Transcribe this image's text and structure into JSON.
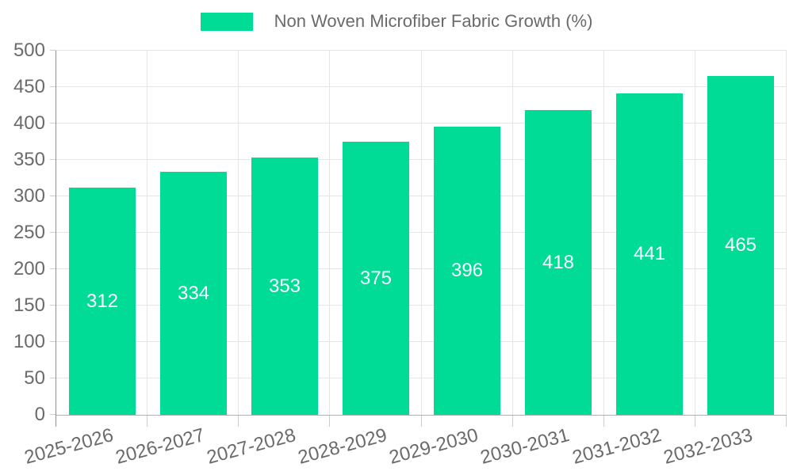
{
  "chart_data": {
    "type": "bar",
    "title": "Non Woven Microfiber Fabric Growth (%)",
    "categories": [
      "2025-2026",
      "2026-2027",
      "2027-2028",
      "2028-2029",
      "2029-2030",
      "2030-2031",
      "2031-2032",
      "2032-2033"
    ],
    "values": [
      312,
      334,
      353,
      375,
      396,
      418,
      441,
      465
    ],
    "xlabel": "",
    "ylabel": "",
    "ylim": [
      0,
      500
    ],
    "yticks": [
      0,
      50,
      100,
      150,
      200,
      250,
      300,
      350,
      400,
      450,
      500
    ],
    "grid": true,
    "legend_position": "top",
    "value_labels": "inside-center"
  },
  "legend": {
    "label": "Non Woven Microfiber Fabric Growth (%)"
  },
  "colors": {
    "bar": "#00DB95",
    "bar_label": "#ffffff",
    "axis_text": "#6a6a6a",
    "legend_text": "#6a6a6a",
    "grid_line": "#e5e5e5",
    "y_axis_line": "#8f8f8f",
    "x_axis_line": "#b0b0b0",
    "tick": "#cccccc",
    "background": "#ffffff"
  }
}
